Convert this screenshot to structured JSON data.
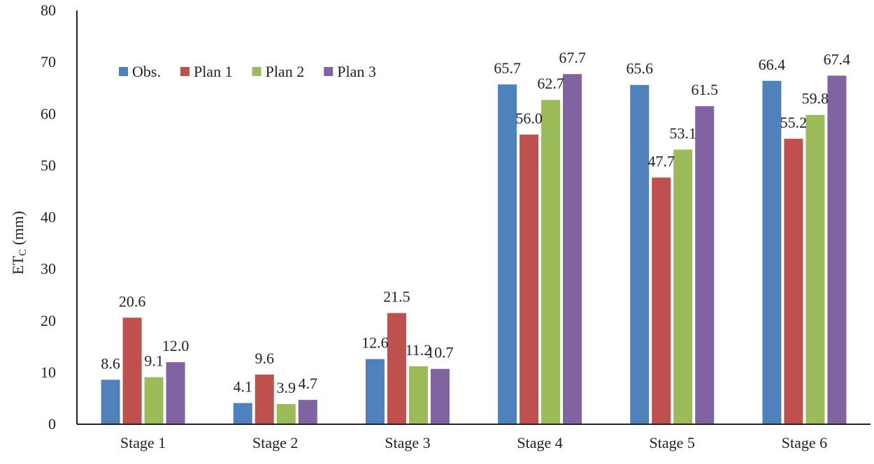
{
  "chart_data": {
    "type": "bar",
    "title": "",
    "xlabel": "",
    "ylabel": "ET",
    "ylabel_sub": "C",
    "ylabel_unit": " (mm)",
    "ylim": [
      0,
      80
    ],
    "yticks": [
      0,
      10,
      20,
      30,
      40,
      50,
      60,
      70,
      80
    ],
    "grid": false,
    "legend_position": "top-left",
    "categories": [
      "Stage 1",
      "Stage 2",
      "Stage 3",
      "Stage 4",
      "Stage 5",
      "Stage 6"
    ],
    "series": [
      {
        "name": "Obs.",
        "color": "#4f81bd",
        "values": [
          8.6,
          4.1,
          12.6,
          65.7,
          65.6,
          66.4
        ]
      },
      {
        "name": "Plan 1",
        "color": "#c0504d",
        "values": [
          20.6,
          9.6,
          21.5,
          56.0,
          47.7,
          55.2
        ]
      },
      {
        "name": "Plan 2",
        "color": "#9bbb59",
        "values": [
          9.1,
          3.9,
          11.2,
          62.7,
          53.1,
          59.8
        ]
      },
      {
        "name": "Plan 3",
        "color": "#8064a2",
        "values": [
          12.0,
          4.7,
          10.7,
          67.7,
          61.5,
          67.4
        ]
      }
    ]
  }
}
